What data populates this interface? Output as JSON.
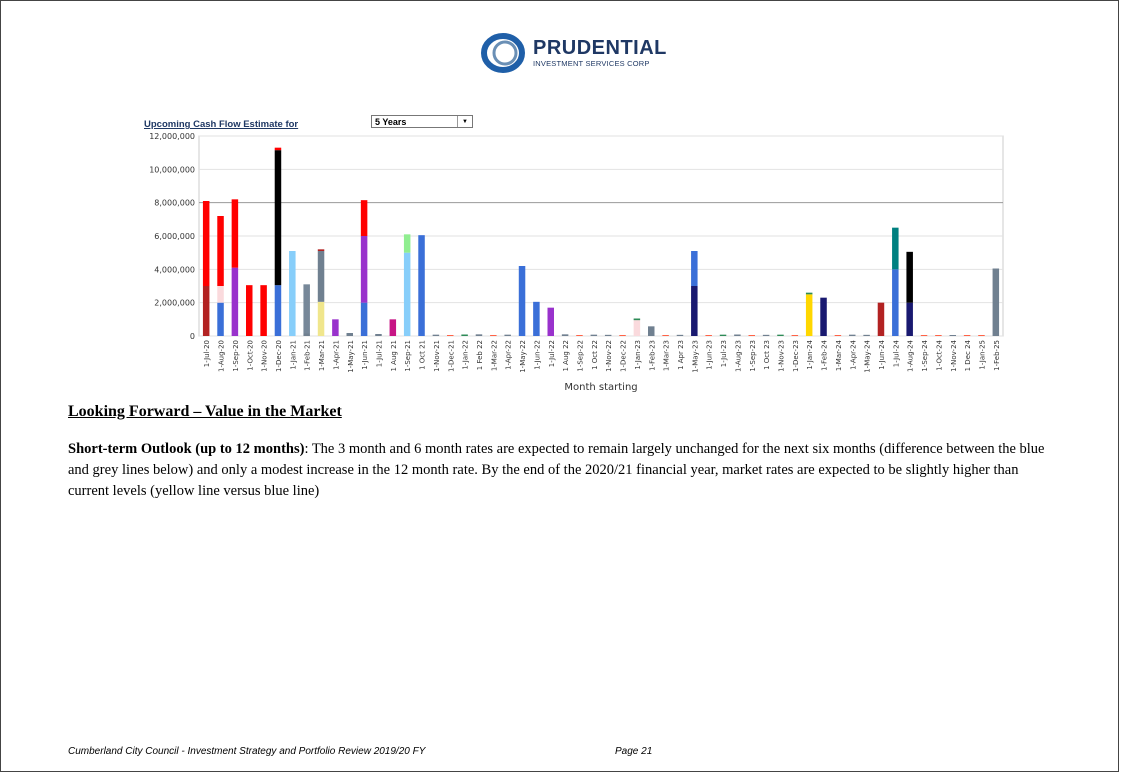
{
  "logo": {
    "name": "PRUDENTIAL",
    "subtitle": "INVESTMENT SERVICES CORP",
    "colors": {
      "ring_outer": "#1f5fa8",
      "ring_inner": "#6a8fb5",
      "text": "#1f3864"
    }
  },
  "chart_header": {
    "title": "Upcoming Cash Flow Estimate for",
    "period_selected": "5 Years"
  },
  "chart_data": {
    "type": "bar",
    "stacked": true,
    "xlabel": "Month starting",
    "ylabel": "",
    "ylim": [
      0,
      12000000
    ],
    "yticks": [
      "0",
      "2,000,000",
      "4,000,000",
      "6,000,000",
      "8,000,000",
      "10,000,000",
      "12,000,000"
    ],
    "grid": true,
    "categories": [
      "1-Jul-20",
      "1-Aug-20",
      "1-Sep-20",
      "1-Oct-20",
      "1-Nov-20",
      "1-Dec-20",
      "1-Jan-21",
      "1-Feb-21",
      "1-Mar-21",
      "1-Apr-21",
      "1-May-21",
      "1-Jun-21",
      "1-Jul-21",
      "1 Aug 21",
      "1-Sep-21",
      "1 Oct 21",
      "1-Nov-21",
      "1-Dec-21",
      "1-Jan-22",
      "1 Feb 22",
      "1-Mar-22",
      "1-Apr-22",
      "1-May-22",
      "1-Jun-22",
      "1-Jul-22",
      "1 Aug 22",
      "1-Sep-22",
      "1 Oct 22",
      "1-Nov-22",
      "1-Dec-22",
      "1-Jan-23",
      "1-Feb-23",
      "1-Mar-23",
      "1 Apr 23",
      "1-May-23",
      "1-Jun-23",
      "1-Jul-23",
      "1-Aug-23",
      "1-Sep-23",
      "1 Oct 23",
      "1-Nov-23",
      "1-Dec-23",
      "1-Jan-24",
      "1-Feb-24",
      "1-Mar-24",
      "1-Apr-24",
      "1-May-24",
      "1-Jun-24",
      "1-Jul-24",
      "1-Aug-24",
      "1-Sep-24",
      "1-Oct-24",
      "1-Nov-24",
      "1 Dec 24",
      "1-Jan-25",
      "1-Feb-25"
    ],
    "bars": [
      [
        {
          "v": 3000000,
          "c": "#b22222"
        },
        {
          "v": 5100000,
          "c": "#ff0000"
        }
      ],
      [
        {
          "v": 2000000,
          "c": "#3a6fd8"
        },
        {
          "v": 1000000,
          "c": "#fadadd"
        },
        {
          "v": 4200000,
          "c": "#ff0000"
        }
      ],
      [
        {
          "v": 4100000,
          "c": "#9932cc"
        },
        {
          "v": 4100000,
          "c": "#ff0000"
        }
      ],
      [
        {
          "v": 3050000,
          "c": "#ff0000"
        }
      ],
      [
        {
          "v": 3050000,
          "c": "#ff0000"
        }
      ],
      [
        {
          "v": 3050000,
          "c": "#3a6fd8"
        },
        {
          "v": 8100000,
          "c": "#000000"
        },
        {
          "v": 150000,
          "c": "#ff0000"
        }
      ],
      [
        {
          "v": 5100000,
          "c": "#87cefa"
        }
      ],
      [
        {
          "v": 150000,
          "c": "#708090"
        },
        {
          "v": 2950000,
          "c": "#778899"
        }
      ],
      [
        {
          "v": 2050000,
          "c": "#f0e68c"
        },
        {
          "v": 3050000,
          "c": "#708090"
        },
        {
          "v": 100000,
          "c": "#b22222"
        }
      ],
      [
        {
          "v": 1000000,
          "c": "#9932cc"
        }
      ],
      [
        {
          "v": 180000,
          "c": "#708090"
        }
      ],
      [
        {
          "v": 2000000,
          "c": "#3a6fd8"
        },
        {
          "v": 4000000,
          "c": "#9932cc"
        },
        {
          "v": 2150000,
          "c": "#ff0000"
        }
      ],
      [
        {
          "v": 120000,
          "c": "#708090"
        }
      ],
      [
        {
          "v": 1000000,
          "c": "#c71585"
        }
      ],
      [
        {
          "v": 5000000,
          "c": "#87cefa"
        },
        {
          "v": 1100000,
          "c": "#90ee90"
        }
      ],
      [
        {
          "v": 6050000,
          "c": "#3a6fd8"
        }
      ],
      [
        {
          "v": 80000,
          "c": "#708090"
        }
      ],
      [
        {
          "v": 60000,
          "c": "#ff6347"
        }
      ],
      [
        {
          "v": 90000,
          "c": "#2e8b57"
        }
      ],
      [
        {
          "v": 100000,
          "c": "#708090"
        }
      ],
      [
        {
          "v": 60000,
          "c": "#ff6347"
        }
      ],
      [
        {
          "v": 80000,
          "c": "#708090"
        }
      ],
      [
        {
          "v": 4200000,
          "c": "#3a6fd8"
        }
      ],
      [
        {
          "v": 2050000,
          "c": "#3a6fd8"
        }
      ],
      [
        {
          "v": 1700000,
          "c": "#9932cc"
        }
      ],
      [
        {
          "v": 100000,
          "c": "#708090"
        }
      ],
      [
        {
          "v": 60000,
          "c": "#ff6347"
        }
      ],
      [
        {
          "v": 80000,
          "c": "#708090"
        }
      ],
      [
        {
          "v": 70000,
          "c": "#708090"
        }
      ],
      [
        {
          "v": 60000,
          "c": "#ff6347"
        }
      ],
      [
        {
          "v": 950000,
          "c": "#fadadd"
        },
        {
          "v": 100000,
          "c": "#2e8b57"
        }
      ],
      [
        {
          "v": 580000,
          "c": "#708090"
        }
      ],
      [
        {
          "v": 60000,
          "c": "#ff6347"
        }
      ],
      [
        {
          "v": 70000,
          "c": "#708090"
        }
      ],
      [
        {
          "v": 3000000,
          "c": "#191970"
        },
        {
          "v": 2100000,
          "c": "#3a6fd8"
        }
      ],
      [
        {
          "v": 60000,
          "c": "#ff6347"
        }
      ],
      [
        {
          "v": 80000,
          "c": "#2e8b57"
        }
      ],
      [
        {
          "v": 90000,
          "c": "#708090"
        }
      ],
      [
        {
          "v": 60000,
          "c": "#ff6347"
        }
      ],
      [
        {
          "v": 70000,
          "c": "#708090"
        }
      ],
      [
        {
          "v": 80000,
          "c": "#2e8b57"
        }
      ],
      [
        {
          "v": 60000,
          "c": "#ff6347"
        }
      ],
      [
        {
          "v": 2500000,
          "c": "#ffd700"
        },
        {
          "v": 100000,
          "c": "#2e8b57"
        }
      ],
      [
        {
          "v": 2300000,
          "c": "#191970"
        }
      ],
      [
        {
          "v": 60000,
          "c": "#ff6347"
        }
      ],
      [
        {
          "v": 80000,
          "c": "#708090"
        }
      ],
      [
        {
          "v": 70000,
          "c": "#708090"
        }
      ],
      [
        {
          "v": 2000000,
          "c": "#b22222"
        }
      ],
      [
        {
          "v": 4000000,
          "c": "#3a6fd8"
        },
        {
          "v": 2500000,
          "c": "#008080"
        }
      ],
      [
        {
          "v": 2000000,
          "c": "#191970"
        },
        {
          "v": 3050000,
          "c": "#000000"
        }
      ],
      [
        {
          "v": 40000,
          "c": "#ff6347"
        }
      ],
      [
        {
          "v": 40000,
          "c": "#ff6347"
        }
      ],
      [
        {
          "v": 40000,
          "c": "#708090"
        }
      ],
      [
        {
          "v": 30000,
          "c": "#ff6347"
        }
      ],
      [
        {
          "v": 30000,
          "c": "#ff6347"
        }
      ],
      [
        {
          "v": 4050000,
          "c": "#708090"
        }
      ]
    ]
  },
  "section": {
    "heading": "Looking Forward – Value in the Market",
    "lead": "Short-term Outlook (up to 12 months)",
    "body": ":  The 3 month and 6 month rates are expected to remain largely unchanged for the next six months (difference between the blue and grey lines below) and only a modest increase in the 12 month rate. By the end of the 2020/21 financial year, market rates are expected to be slightly higher than current levels (yellow line versus blue line)"
  },
  "footer": {
    "left": "Cumberland City Council - Investment Strategy and Portfolio Review 2019/20 FY",
    "page": "Page 21"
  }
}
